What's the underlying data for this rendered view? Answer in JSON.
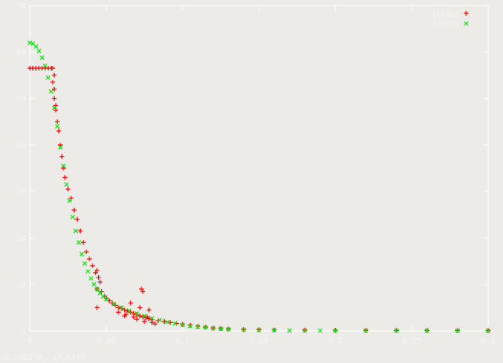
{
  "status_coords": "0.295070,  17.5740",
  "colors": {
    "background": "#ecebe8",
    "axis": "#ffffff",
    "text": "#f5f5f5",
    "exp": "#ff0000",
    "fit": "#00e600"
  },
  "chart_data": {
    "type": "scatter",
    "title": "",
    "xlabel": "",
    "ylabel": "",
    "xlim": [
      0,
      0.3
    ],
    "ylim": [
      0,
      70
    ],
    "x_ticks": [
      "0",
      "0.05",
      "0.1",
      "0.15",
      "0.2",
      "0.25",
      "0.3"
    ],
    "y_ticks": [
      "0",
      "10",
      "20",
      "30",
      "40",
      "50",
      "60",
      "70"
    ],
    "grid": false,
    "legend_position": "top-right",
    "series": [
      {
        "name": "I(Exp)",
        "marker": "+",
        "color": "#ff0000",
        "points": [
          [
            0.0,
            56.5
          ],
          [
            0.002,
            56.5
          ],
          [
            0.004,
            56.5
          ],
          [
            0.006,
            56.5
          ],
          [
            0.008,
            56.5
          ],
          [
            0.01,
            56.5
          ],
          [
            0.012,
            56.5
          ],
          [
            0.014,
            56.5
          ],
          [
            0.015,
            56.5
          ],
          [
            0.016,
            55.0
          ],
          [
            0.015,
            53.5
          ],
          [
            0.016,
            52.0
          ],
          [
            0.016,
            50.0
          ],
          [
            0.017,
            48.5
          ],
          [
            0.017,
            47.5
          ],
          [
            0.018,
            45.0
          ],
          [
            0.019,
            43.0
          ],
          [
            0.02,
            40.0
          ],
          [
            0.021,
            37.5
          ],
          [
            0.022,
            35.0
          ],
          [
            0.023,
            33.0
          ],
          [
            0.025,
            30.5
          ],
          [
            0.027,
            28.5
          ],
          [
            0.029,
            26.0
          ],
          [
            0.031,
            24.0
          ],
          [
            0.033,
            21.5
          ],
          [
            0.035,
            19.0
          ],
          [
            0.037,
            17.0
          ],
          [
            0.039,
            15.5
          ],
          [
            0.041,
            14.0
          ],
          [
            0.043,
            12.5
          ],
          [
            0.044,
            13.0
          ],
          [
            0.045,
            11.5
          ],
          [
            0.046,
            10.5
          ],
          [
            0.044,
            9.0
          ],
          [
            0.047,
            8.5
          ],
          [
            0.049,
            7.5
          ],
          [
            0.05,
            7.0
          ],
          [
            0.052,
            6.5
          ],
          [
            0.054,
            6.0
          ],
          [
            0.056,
            5.5
          ],
          [
            0.058,
            5.0
          ],
          [
            0.06,
            4.8
          ],
          [
            0.062,
            4.5
          ],
          [
            0.064,
            4.3
          ],
          [
            0.066,
            4.0
          ],
          [
            0.068,
            3.7
          ],
          [
            0.07,
            3.5
          ],
          [
            0.072,
            3.2
          ],
          [
            0.074,
            3.0
          ],
          [
            0.076,
            2.8
          ],
          [
            0.078,
            2.6
          ],
          [
            0.08,
            2.4
          ],
          [
            0.084,
            2.2
          ],
          [
            0.088,
            2.0
          ],
          [
            0.092,
            1.8
          ],
          [
            0.096,
            1.6
          ],
          [
            0.1,
            1.4
          ],
          [
            0.105,
            1.2
          ],
          [
            0.11,
            1.0
          ],
          [
            0.115,
            0.8
          ],
          [
            0.12,
            0.6
          ],
          [
            0.125,
            0.5
          ],
          [
            0.13,
            0.4
          ],
          [
            0.14,
            0.3
          ],
          [
            0.15,
            0.25
          ],
          [
            0.16,
            0.2
          ],
          [
            0.18,
            0.15
          ],
          [
            0.2,
            0.12
          ],
          [
            0.22,
            0.1
          ],
          [
            0.24,
            0.1
          ],
          [
            0.26,
            0.08
          ],
          [
            0.28,
            0.08
          ],
          [
            0.3,
            0.06
          ],
          [
            0.044,
            5.0
          ],
          [
            0.063,
            3.5
          ],
          [
            0.066,
            6.0
          ],
          [
            0.074,
            8.5
          ],
          [
            0.073,
            9.0
          ],
          [
            0.07,
            2.5
          ],
          [
            0.075,
            2.0
          ],
          [
            0.077,
            3.0
          ],
          [
            0.08,
            1.8
          ],
          [
            0.082,
            1.5
          ],
          [
            0.072,
            5.0
          ],
          [
            0.078,
            4.5
          ],
          [
            0.068,
            3.0
          ],
          [
            0.058,
            4.0
          ],
          [
            0.062,
            3.2
          ]
        ]
      },
      {
        "name": "I(Fit)",
        "marker": "x",
        "color": "#00e600",
        "points": [
          [
            0.0,
            62.0
          ],
          [
            0.002,
            61.8
          ],
          [
            0.004,
            61.2
          ],
          [
            0.006,
            60.2
          ],
          [
            0.008,
            58.8
          ],
          [
            0.01,
            57.0
          ],
          [
            0.012,
            54.5
          ],
          [
            0.014,
            51.5
          ],
          [
            0.016,
            48.0
          ],
          [
            0.018,
            44.0
          ],
          [
            0.02,
            39.5
          ],
          [
            0.022,
            35.5
          ],
          [
            0.024,
            31.5
          ],
          [
            0.026,
            28.0
          ],
          [
            0.028,
            24.5
          ],
          [
            0.03,
            21.5
          ],
          [
            0.032,
            19.0
          ],
          [
            0.034,
            16.5
          ],
          [
            0.036,
            14.5
          ],
          [
            0.038,
            12.8
          ],
          [
            0.04,
            11.3
          ],
          [
            0.042,
            10.0
          ],
          [
            0.044,
            9.0
          ],
          [
            0.046,
            8.1
          ],
          [
            0.048,
            7.4
          ],
          [
            0.05,
            6.8
          ],
          [
            0.055,
            5.8
          ],
          [
            0.06,
            5.0
          ],
          [
            0.065,
            4.3
          ],
          [
            0.07,
            3.7
          ],
          [
            0.075,
            3.2
          ],
          [
            0.08,
            2.7
          ],
          [
            0.085,
            2.3
          ],
          [
            0.09,
            1.9
          ],
          [
            0.095,
            1.6
          ],
          [
            0.1,
            1.3
          ],
          [
            0.105,
            1.05
          ],
          [
            0.11,
            0.85
          ],
          [
            0.115,
            0.7
          ],
          [
            0.12,
            0.55
          ],
          [
            0.125,
            0.45
          ],
          [
            0.13,
            0.35
          ],
          [
            0.14,
            0.25
          ],
          [
            0.15,
            0.18
          ],
          [
            0.16,
            0.12
          ],
          [
            0.17,
            0.08
          ],
          [
            0.18,
            0.06
          ],
          [
            0.19,
            0.04
          ],
          [
            0.2,
            0.03
          ],
          [
            0.22,
            0.02
          ],
          [
            0.24,
            0.01
          ],
          [
            0.26,
            0.01
          ],
          [
            0.28,
            0.0
          ],
          [
            0.3,
            0.0
          ]
        ]
      }
    ]
  }
}
